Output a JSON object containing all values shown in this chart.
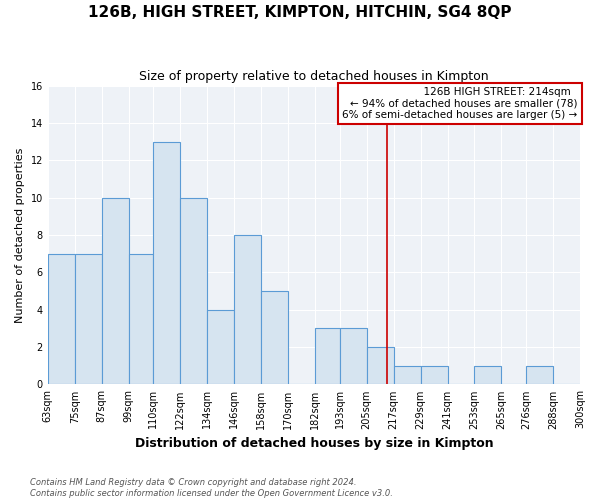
{
  "title": "126B, HIGH STREET, KIMPTON, HITCHIN, SG4 8QP",
  "subtitle": "Size of property relative to detached houses in Kimpton",
  "xlabel": "Distribution of detached houses by size in Kimpton",
  "ylabel": "Number of detached properties",
  "bin_edges": [
    63,
    75,
    87,
    99,
    110,
    122,
    134,
    146,
    158,
    170,
    182,
    193,
    205,
    217,
    229,
    241,
    253,
    265,
    276,
    288,
    300
  ],
  "bar_heights": [
    7,
    7,
    10,
    7,
    13,
    10,
    4,
    8,
    5,
    0,
    3,
    3,
    2,
    1,
    1,
    0,
    1,
    0,
    1,
    0
  ],
  "bar_color": "#d6e4f0",
  "bar_edge_color": "#5b9bd5",
  "vline_x": 214,
  "vline_color": "#cc0000",
  "annotation_title": "126B HIGH STREET: 214sqm",
  "annotation_line1": "← 94% of detached houses are smaller (78)",
  "annotation_line2": "6% of semi-detached houses are larger (5) →",
  "annotation_box_edge": "#cc0000",
  "ylim": [
    0,
    16
  ],
  "yticks": [
    0,
    2,
    4,
    6,
    8,
    10,
    12,
    14,
    16
  ],
  "tick_labels": [
    "63sqm",
    "75sqm",
    "87sqm",
    "99sqm",
    "110sqm",
    "122sqm",
    "134sqm",
    "146sqm",
    "158sqm",
    "170sqm",
    "182sqm",
    "193sqm",
    "205sqm",
    "217sqm",
    "229sqm",
    "241sqm",
    "253sqm",
    "265sqm",
    "276sqm",
    "288sqm",
    "300sqm"
  ],
  "footer_line1": "Contains HM Land Registry data © Crown copyright and database right 2024.",
  "footer_line2": "Contains public sector information licensed under the Open Government Licence v3.0.",
  "bg_color": "#ffffff",
  "plot_bg_color": "#eef2f7",
  "grid_color": "#ffffff",
  "title_fontsize": 11,
  "subtitle_fontsize": 9,
  "ylabel_fontsize": 8,
  "xlabel_fontsize": 9,
  "tick_fontsize": 7,
  "footer_fontsize": 6
}
